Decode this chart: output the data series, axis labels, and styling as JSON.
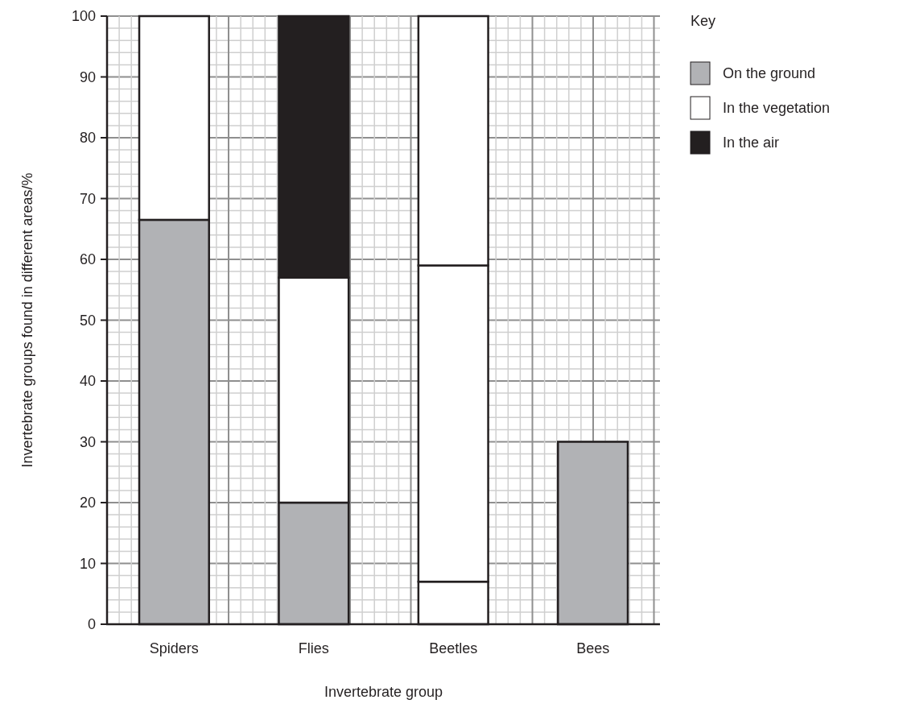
{
  "chart_data": {
    "type": "bar",
    "stacked": true,
    "xlabel": "Invertebrate group",
    "ylabel": "Invertebrate groups found in different areas/%",
    "legend_title": "Key",
    "legend": "top right",
    "grid": true,
    "categories": [
      "Spiders",
      "Flies",
      "Beetles",
      "Bees"
    ],
    "series": [
      {
        "name": "On the ground",
        "color": "#b1b2b5",
        "colors": [
          "#b1b2b5",
          "#b1b2b5",
          "#ffffff",
          "#b1b2b5"
        ],
        "values": [
          66.5,
          20,
          7,
          30
        ]
      },
      {
        "name": "In the vegetation",
        "color": "#ffffff",
        "values": [
          33.5,
          37,
          52,
          null
        ]
      },
      {
        "name": "In the air",
        "color": "#231f20",
        "colors": [
          null,
          "#231f20",
          "#ffffff",
          null
        ],
        "values": [
          null,
          43,
          41,
          null
        ]
      }
    ],
    "ylim": [
      0,
      100
    ],
    "yticks": [
      0,
      10,
      20,
      30,
      40,
      50,
      60,
      70,
      80,
      90,
      100
    ]
  }
}
